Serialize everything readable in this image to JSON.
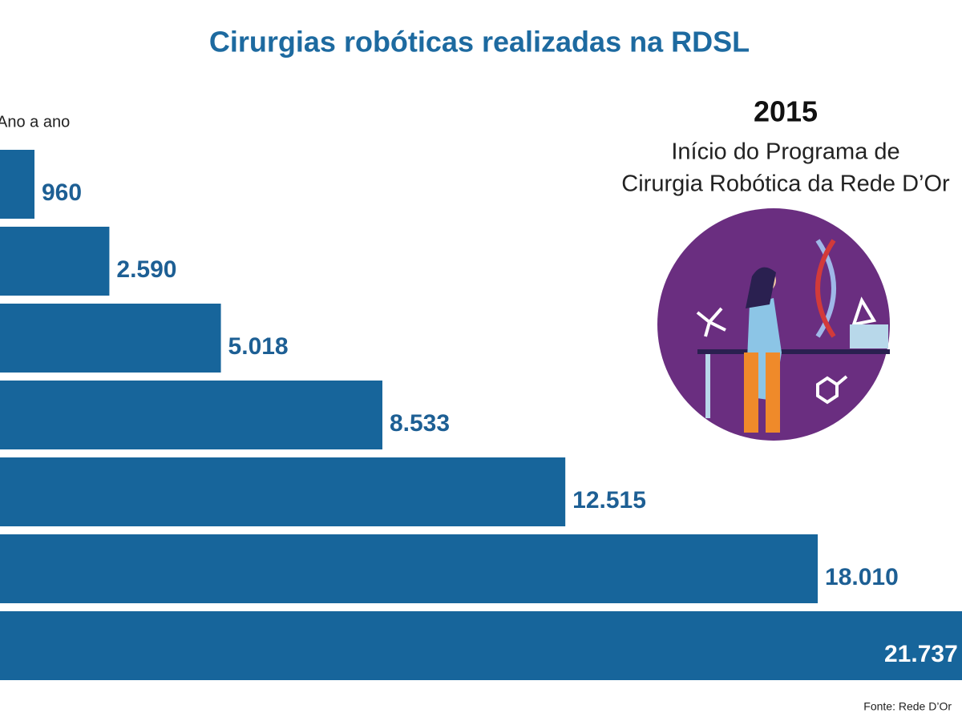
{
  "chart_data": {
    "type": "bar",
    "orientation": "horizontal",
    "title": "Cirurgias robóticas realizadas na RDSL",
    "subtitle": "Ano a ano",
    "annotation": {
      "year": "2015",
      "lines": [
        "Início do Programa de",
        "Cirurgia Robótica da Rede D’Or"
      ]
    },
    "source": "Fonte: Rede D’Or",
    "categories": [
      null,
      null,
      null,
      null,
      null,
      null,
      null
    ],
    "values": [
      960,
      2590,
      5018,
      8533,
      12515,
      18010,
      21737
    ],
    "value_labels": [
      "960",
      "2.590",
      "5.018",
      "8.533",
      "12.515",
      "18.010",
      "21.737"
    ],
    "color": "#17659b",
    "xlim": [
      0,
      21150
    ]
  }
}
